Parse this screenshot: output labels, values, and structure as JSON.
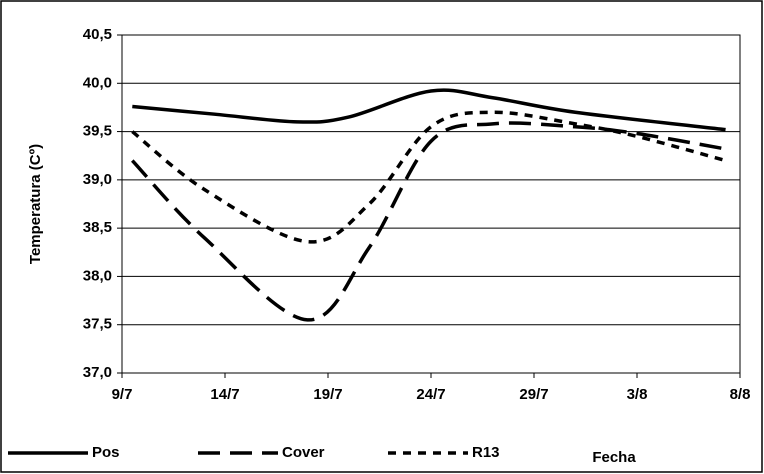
{
  "chart_data": {
    "type": "line",
    "y_label": "Temperatura (Cº)",
    "x_label": "Fecha",
    "xlim": [
      9,
      39
    ],
    "xticks": [
      {
        "value": 9,
        "label": "9/7"
      },
      {
        "value": 14,
        "label": "14/7"
      },
      {
        "value": 19,
        "label": "19/7"
      },
      {
        "value": 24,
        "label": "24/7"
      },
      {
        "value": 29,
        "label": "29/7"
      },
      {
        "value": 34,
        "label": "3/8"
      },
      {
        "value": 39,
        "label": "8/8"
      }
    ],
    "ylim": [
      37,
      40.5
    ],
    "yticks": [
      {
        "value": 37,
        "label": "37,0"
      },
      {
        "value": 37.5,
        "label": "37,5"
      },
      {
        "value": 38,
        "label": "38,0"
      },
      {
        "value": 38.5,
        "label": "38,5"
      },
      {
        "value": 39,
        "label": "39,0"
      },
      {
        "value": 39.5,
        "label": "39,5"
      },
      {
        "value": 40,
        "label": "40,0"
      },
      {
        "value": 40.5,
        "label": "40,5"
      }
    ],
    "grid": true,
    "series": [
      {
        "name": "Pos",
        "color": "#000000",
        "dash": "none",
        "x": [
          9.5,
          13.5,
          17.5,
          20,
          24,
          27,
          31,
          38.3
        ],
        "values": [
          39.76,
          39.68,
          39.6,
          39.65,
          39.92,
          39.85,
          39.7,
          39.52
        ]
      },
      {
        "name": "Cover",
        "color": "#000000",
        "dash": "22,10",
        "x": [
          9.5,
          13,
          18,
          21,
          24,
          27,
          31,
          34,
          38.3
        ],
        "values": [
          39.2,
          38.4,
          37.55,
          38.3,
          39.4,
          39.58,
          39.55,
          39.48,
          39.32
        ]
      },
      {
        "name": "R13",
        "color": "#000000",
        "dash": "8,7",
        "x": [
          9.5,
          13,
          18,
          21,
          24,
          27,
          31,
          34,
          38.3
        ],
        "values": [
          39.5,
          38.9,
          38.36,
          38.75,
          39.55,
          39.7,
          39.58,
          39.45,
          39.2
        ]
      }
    ]
  }
}
